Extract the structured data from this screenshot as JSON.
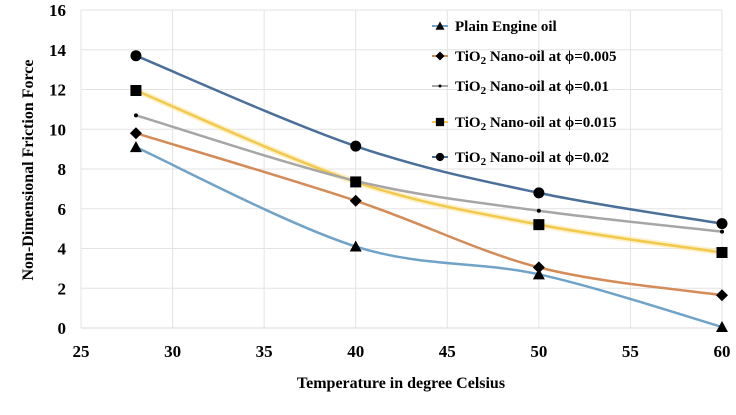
{
  "chart_data": {
    "type": "line",
    "title": "",
    "xlabel": "Temperature in degree Celsius",
    "ylabel": "Non-Dimensional Friction Force",
    "xlim": [
      25,
      60
    ],
    "ylim": [
      0,
      16
    ],
    "xticks": [
      25,
      30,
      35,
      40,
      45,
      50,
      55,
      60
    ],
    "yticks": [
      0,
      2,
      4,
      6,
      8,
      10,
      12,
      14,
      16
    ],
    "grid": true,
    "smooth": true,
    "legend_position": "top-right",
    "x": [
      28,
      40,
      50,
      60
    ],
    "series": [
      {
        "name": "Plain Engine oil",
        "subscript_prefix": "",
        "values": [
          9.1,
          4.1,
          2.7,
          0.05
        ],
        "color": "#6fa3c8",
        "marker": "triangle"
      },
      {
        "name": "TiO2 Nano-oil at ϕ=0.005",
        "values": [
          9.8,
          6.4,
          3.05,
          1.65
        ],
        "color": "#d58b57",
        "marker": "diamond"
      },
      {
        "name": "TiO2 Nano-oil at ϕ=0.01",
        "values": [
          10.7,
          7.4,
          5.9,
          4.85
        ],
        "color": "#a6a6a6",
        "marker": "dot"
      },
      {
        "name": "TiO2 Nano-oil at ϕ=0.015",
        "values": [
          11.95,
          7.35,
          5.2,
          3.8
        ],
        "color": "#f2c94c",
        "marker": "square"
      },
      {
        "name": "TiO2 Nano-oil at ϕ=0.02",
        "values": [
          13.7,
          9.15,
          6.8,
          5.25
        ],
        "color": "#4a6f9a",
        "marker": "circle"
      }
    ],
    "legend_labels": [
      {
        "main": "Plain Engine oil",
        "pre": "",
        "sub": "",
        "post": ""
      },
      {
        "main": "",
        "pre": "TiO",
        "sub": "2",
        "post": " Nano-oil at ϕ=0.005"
      },
      {
        "main": "",
        "pre": "TiO",
        "sub": "2",
        "post": " Nano-oil at ϕ=0.01"
      },
      {
        "main": "",
        "pre": "TiO",
        "sub": "2",
        "post": " Nano-oil at ϕ=0.015"
      },
      {
        "main": "",
        "pre": "TiO",
        "sub": "2",
        "post": " Nano-oil at ϕ=0.02"
      }
    ]
  }
}
